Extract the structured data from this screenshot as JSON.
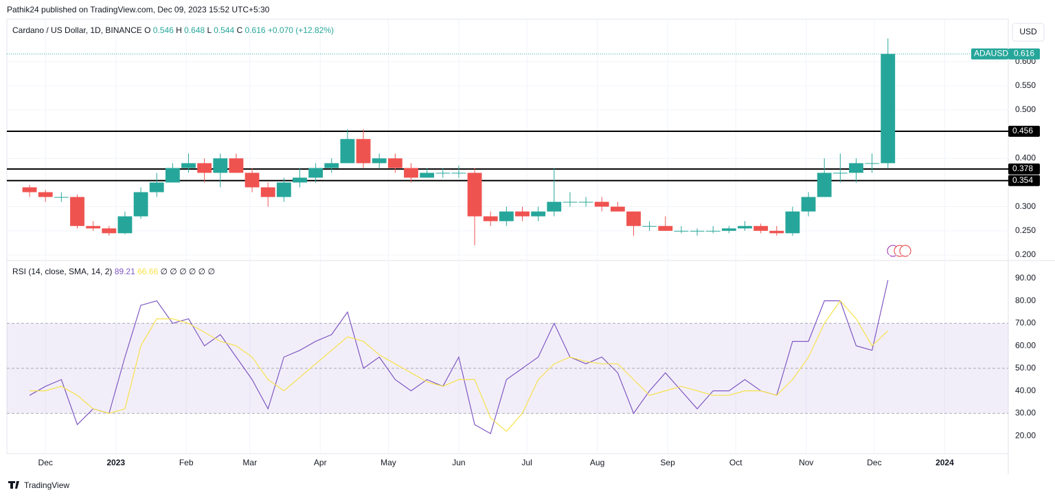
{
  "header": {
    "byline": "Pathik24 published on TradingView.com, Dec 09, 2023 15:52 UTC+5:30",
    "currency_button": "USD",
    "footer": "TradingView"
  },
  "chart_data": [
    {
      "type": "candlestick",
      "title": "Cardano / US Dollar, 1D, BINANCE",
      "legend": [
        {
          "key": "O",
          "value": 0.546
        },
        {
          "key": "H",
          "value": 0.648
        },
        {
          "key": "L",
          "value": 0.544
        },
        {
          "key": "C",
          "value": 0.616
        }
      ],
      "change": {
        "value": 0.07,
        "label": "+0.070"
      },
      "change_pct": {
        "value": 12.82,
        "label": "(+12.82%)"
      },
      "symbol": "ADAUSD",
      "last": 0.616,
      "levels": [
        0.456,
        0.378,
        0.354
      ],
      "up_color": "#26a69a",
      "down_color": "#ef5350",
      "x": [
        "2022-11-21",
        "2022-11-28",
        "2022-12-05",
        "2022-12-12",
        "2022-12-19",
        "2022-12-26",
        "2023-01-02",
        "2023-01-09",
        "2023-01-16",
        "2023-01-23",
        "2023-01-30",
        "2023-02-06",
        "2023-02-13",
        "2023-02-20",
        "2023-02-27",
        "2023-03-06",
        "2023-03-13",
        "2023-03-20",
        "2023-03-27",
        "2023-04-03",
        "2023-04-10",
        "2023-04-17",
        "2023-04-24",
        "2023-05-01",
        "2023-05-08",
        "2023-05-15",
        "2023-05-22",
        "2023-05-29",
        "2023-06-05",
        "2023-06-12",
        "2023-06-19",
        "2023-06-26",
        "2023-07-03",
        "2023-07-10",
        "2023-07-17",
        "2023-07-24",
        "2023-07-31",
        "2023-08-07",
        "2023-08-14",
        "2023-08-21",
        "2023-08-28",
        "2023-09-04",
        "2023-09-11",
        "2023-09-18",
        "2023-09-25",
        "2023-10-02",
        "2023-10-09",
        "2023-10-16",
        "2023-10-23",
        "2023-10-30",
        "2023-11-06",
        "2023-11-13",
        "2023-11-20",
        "2023-11-27",
        "2023-12-04"
      ],
      "open": [
        0.34,
        0.33,
        0.32,
        0.32,
        0.26,
        0.255,
        0.245,
        0.28,
        0.33,
        0.35,
        0.38,
        0.39,
        0.37,
        0.4,
        0.37,
        0.34,
        0.32,
        0.35,
        0.36,
        0.38,
        0.39,
        0.44,
        0.39,
        0.4,
        0.38,
        0.36,
        0.37,
        0.37,
        0.37,
        0.28,
        0.27,
        0.29,
        0.28,
        0.29,
        0.31,
        0.31,
        0.31,
        0.3,
        0.29,
        0.26,
        0.26,
        0.25,
        0.25,
        0.25,
        0.25,
        0.255,
        0.26,
        0.25,
        0.245,
        0.29,
        0.32,
        0.37,
        0.37,
        0.39,
        0.39
      ],
      "high": [
        0.345,
        0.335,
        0.33,
        0.325,
        0.27,
        0.26,
        0.29,
        0.34,
        0.37,
        0.39,
        0.41,
        0.4,
        0.41,
        0.41,
        0.38,
        0.35,
        0.36,
        0.38,
        0.39,
        0.4,
        0.46,
        0.46,
        0.41,
        0.41,
        0.39,
        0.38,
        0.38,
        0.385,
        0.38,
        0.29,
        0.3,
        0.3,
        0.3,
        0.38,
        0.33,
        0.32,
        0.32,
        0.31,
        0.29,
        0.27,
        0.28,
        0.26,
        0.255,
        0.26,
        0.26,
        0.27,
        0.265,
        0.26,
        0.3,
        0.33,
        0.4,
        0.41,
        0.4,
        0.41,
        0.648
      ],
      "low": [
        0.32,
        0.31,
        0.31,
        0.255,
        0.25,
        0.24,
        0.243,
        0.275,
        0.32,
        0.35,
        0.37,
        0.35,
        0.34,
        0.37,
        0.33,
        0.3,
        0.31,
        0.34,
        0.35,
        0.37,
        0.39,
        0.38,
        0.38,
        0.37,
        0.35,
        0.36,
        0.36,
        0.36,
        0.22,
        0.26,
        0.26,
        0.27,
        0.27,
        0.28,
        0.3,
        0.3,
        0.29,
        0.29,
        0.24,
        0.25,
        0.25,
        0.245,
        0.24,
        0.245,
        0.245,
        0.25,
        0.245,
        0.24,
        0.24,
        0.28,
        0.32,
        0.35,
        0.35,
        0.37,
        0.38
      ],
      "close": [
        0.33,
        0.32,
        0.32,
        0.26,
        0.255,
        0.245,
        0.28,
        0.33,
        0.35,
        0.38,
        0.39,
        0.37,
        0.4,
        0.37,
        0.34,
        0.32,
        0.35,
        0.36,
        0.38,
        0.39,
        0.44,
        0.39,
        0.4,
        0.38,
        0.36,
        0.37,
        0.37,
        0.37,
        0.28,
        0.27,
        0.29,
        0.28,
        0.29,
        0.31,
        0.31,
        0.31,
        0.3,
        0.29,
        0.26,
        0.26,
        0.25,
        0.25,
        0.25,
        0.25,
        0.255,
        0.26,
        0.25,
        0.245,
        0.29,
        0.32,
        0.37,
        0.37,
        0.39,
        0.39,
        0.616
      ],
      "xlim": [
        "2022-11-14",
        "2024-01-29"
      ],
      "xticks": [
        {
          "value": "2022-12-01",
          "label": "Dec"
        },
        {
          "value": "2023-01-01",
          "label": "2023"
        },
        {
          "value": "2023-02-01",
          "label": "Feb"
        },
        {
          "value": "2023-03-01",
          "label": "Mar"
        },
        {
          "value": "2023-04-01",
          "label": "Apr"
        },
        {
          "value": "2023-05-01",
          "label": "May"
        },
        {
          "value": "2023-06-01",
          "label": "Jun"
        },
        {
          "value": "2023-07-01",
          "label": "Jul"
        },
        {
          "value": "2023-08-01",
          "label": "Aug"
        },
        {
          "value": "2023-09-01",
          "label": "Sep"
        },
        {
          "value": "2023-10-01",
          "label": "Oct"
        },
        {
          "value": "2023-11-01",
          "label": "Nov"
        },
        {
          "value": "2023-12-01",
          "label": "Dec"
        },
        {
          "value": "2024-01-01",
          "label": "2024"
        }
      ],
      "ylim": [
        0.19,
        0.685
      ],
      "yticks": [
        {
          "value": 0.2,
          "label": "0.200"
        },
        {
          "value": 0.25,
          "label": "0.250"
        },
        {
          "value": 0.3,
          "label": "0.300"
        },
        {
          "value": 0.4,
          "label": "0.400"
        },
        {
          "value": 0.5,
          "label": "0.500"
        },
        {
          "value": 0.55,
          "label": "0.550"
        },
        {
          "value": 0.6,
          "label": "0.600"
        }
      ],
      "grid": true
    },
    {
      "type": "line",
      "title": "RSI (14, close, SMA, 14, 2)",
      "empty_markers": [
        "∅",
        "∅",
        "∅",
        "∅",
        "∅",
        "∅"
      ],
      "band": [
        30,
        70
      ],
      "midline": 50,
      "series": [
        {
          "name": "RSI",
          "color": "#7e57c2",
          "values": [
            38,
            42,
            45,
            25,
            32,
            30,
            55,
            78,
            80,
            70,
            72,
            60,
            65,
            55,
            45,
            32,
            55,
            58,
            62,
            65,
            75,
            50,
            55,
            45,
            40,
            45,
            42,
            55,
            25,
            21,
            45,
            50,
            55,
            70,
            55,
            52,
            55,
            48,
            30,
            40,
            48,
            40,
            32,
            40,
            40,
            45,
            40,
            38,
            62,
            62,
            80,
            80,
            60,
            58,
            89.21
          ]
        },
        {
          "name": "RSI-based MA",
          "color": "#f7e14a",
          "values": [
            40,
            40,
            42,
            38,
            32,
            30,
            32,
            60,
            72,
            72,
            70,
            66,
            62,
            60,
            55,
            45,
            40,
            46,
            52,
            58,
            64,
            62,
            56,
            52,
            48,
            44,
            42,
            45,
            45,
            28,
            22,
            30,
            45,
            52,
            55,
            53,
            52,
            52,
            45,
            38,
            40,
            42,
            40,
            38,
            38,
            40,
            40,
            38,
            45,
            55,
            70,
            80,
            72,
            60,
            66.66
          ]
        }
      ],
      "ylim": [
        12.4,
        97.3
      ],
      "yticks": [
        {
          "value": 20,
          "label": "20.00"
        },
        {
          "value": 30,
          "label": "30.00"
        },
        {
          "value": 40,
          "label": "40.00"
        },
        {
          "value": 50,
          "label": "50.00"
        },
        {
          "value": 60,
          "label": "60.00"
        },
        {
          "value": 70,
          "label": "70.00"
        },
        {
          "value": 80,
          "label": "80.00"
        },
        {
          "value": 90,
          "label": "90.00"
        }
      ]
    }
  ]
}
